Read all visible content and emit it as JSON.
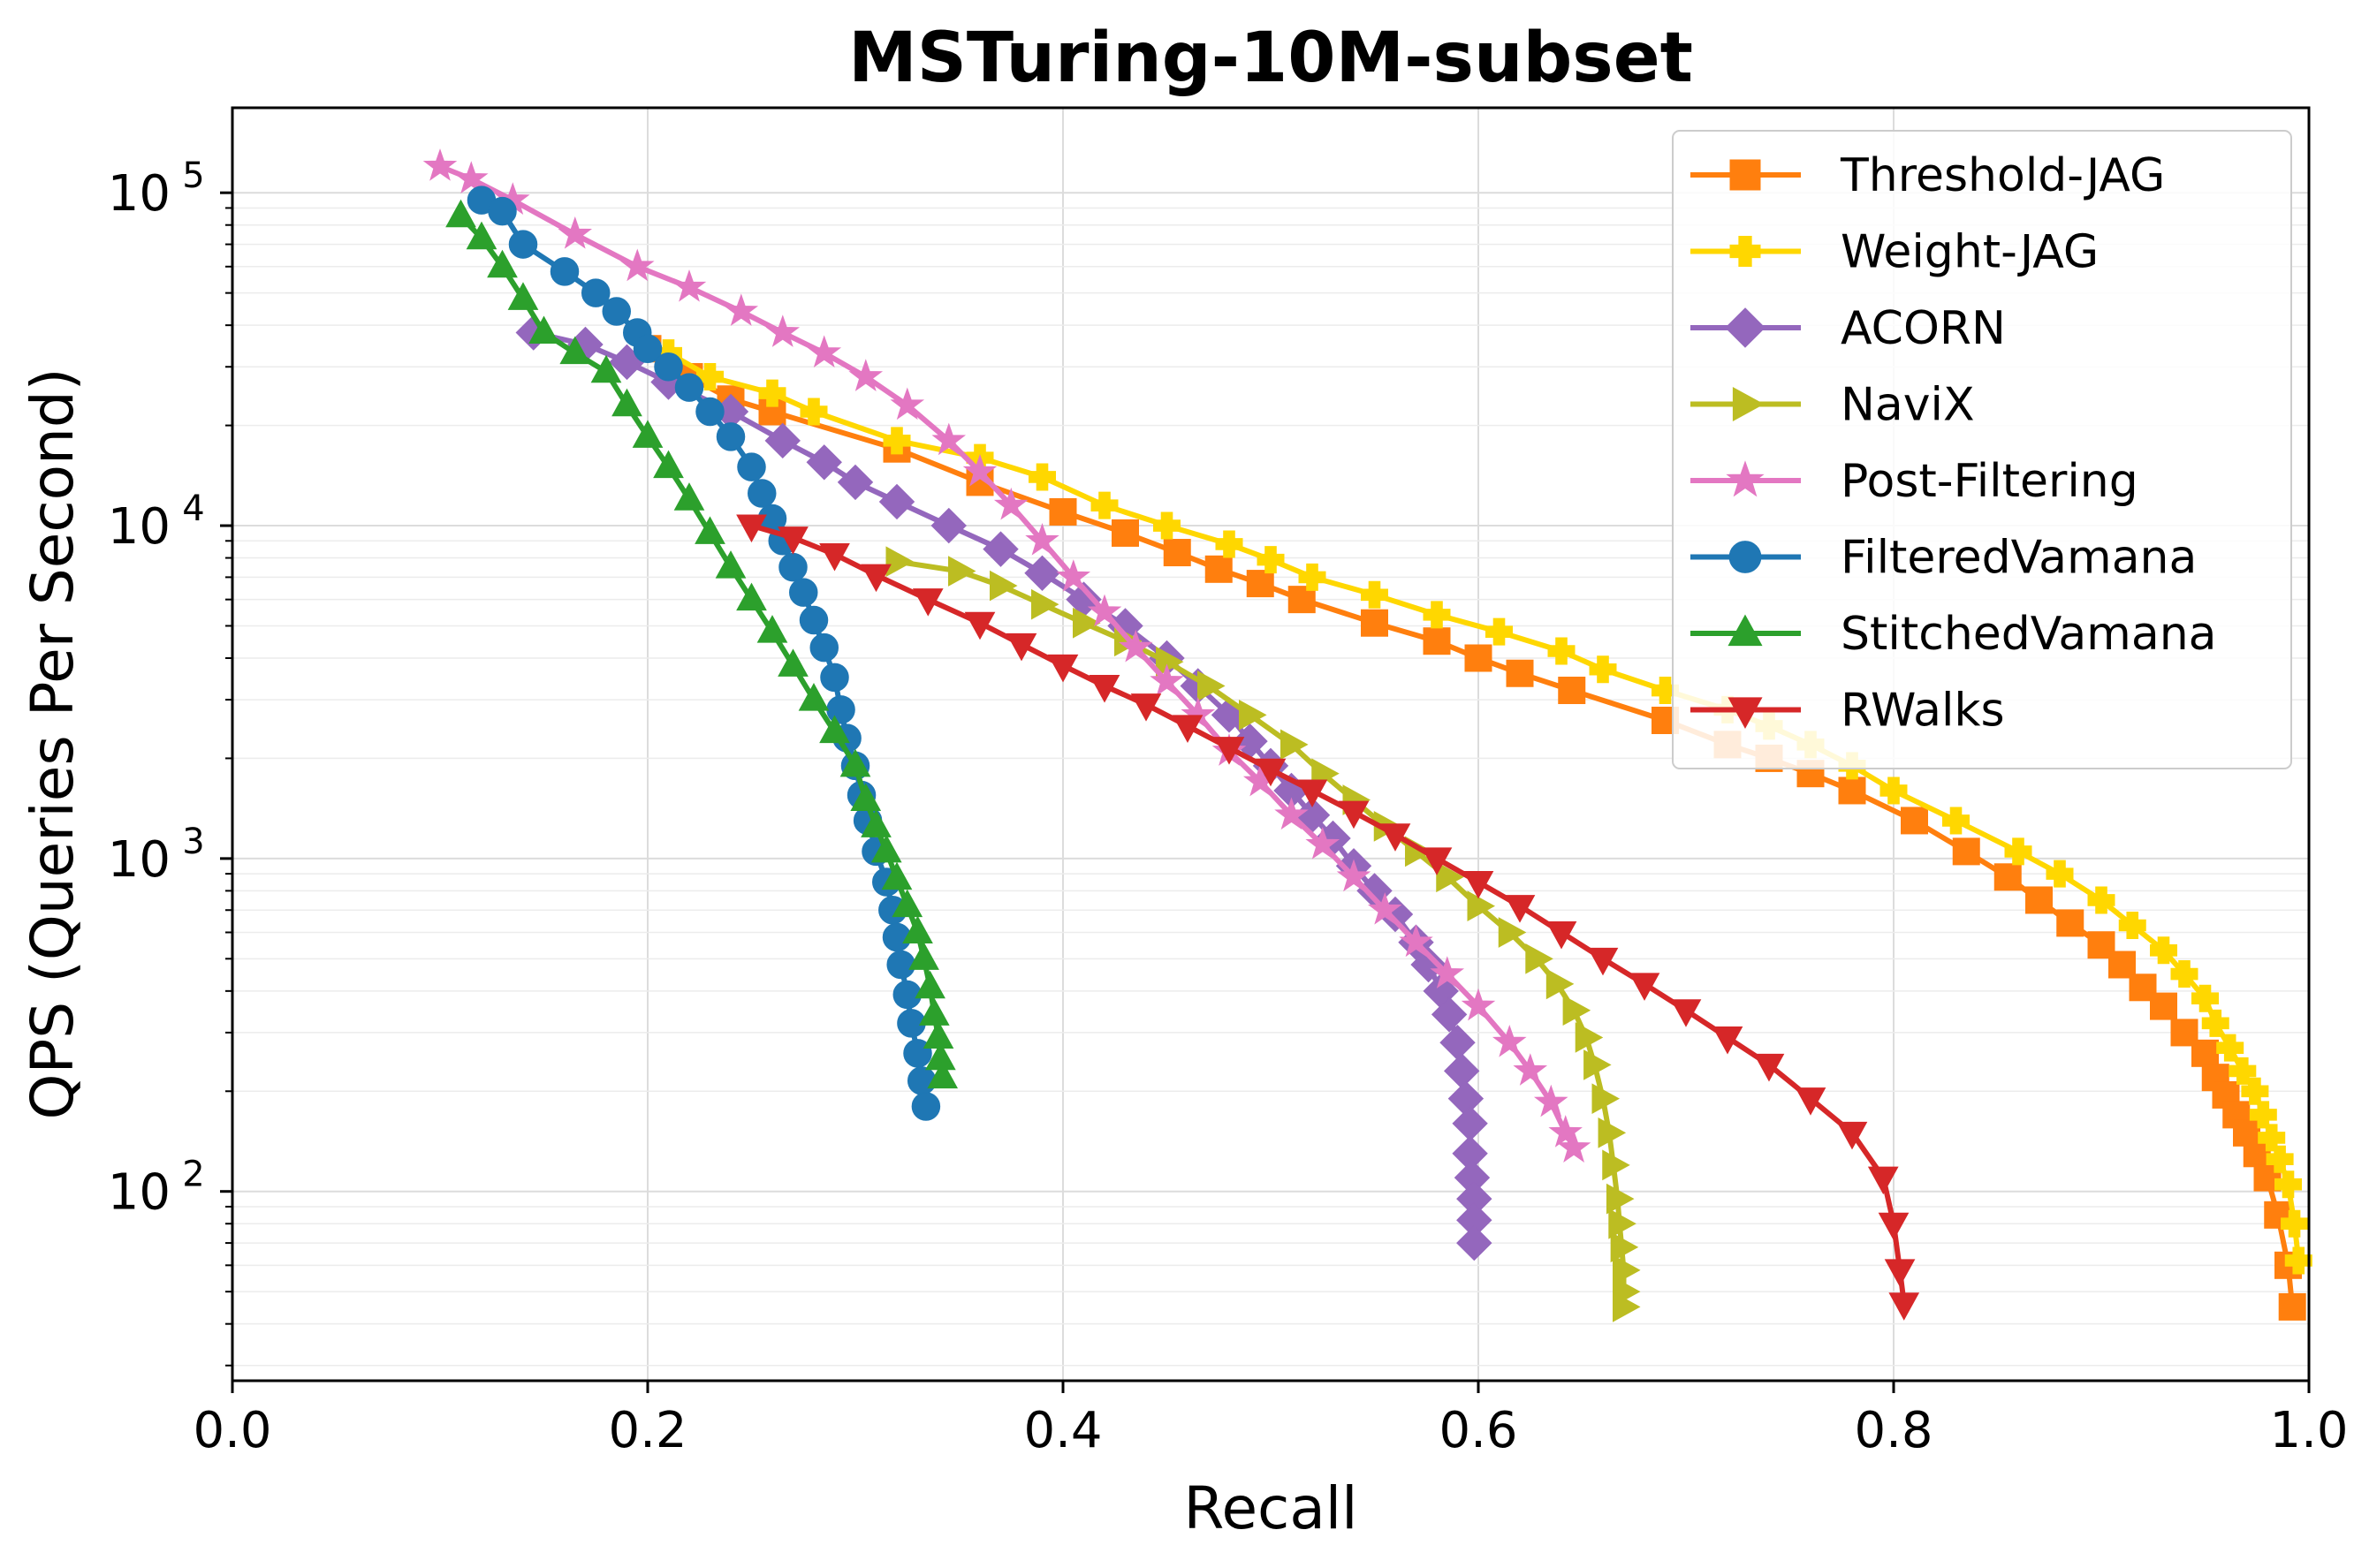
{
  "chart_data": {
    "type": "line",
    "title": "MSTuring-10M-subset",
    "xlabel": "Recall",
    "ylabel": "QPS (Queries Per Second)",
    "xlim": [
      0.0,
      1.0
    ],
    "ylim": [
      27,
      180000
    ],
    "yscale": "log",
    "grid": true,
    "legend_position": "top-right",
    "x_ticks": [
      {
        "value": 0.0,
        "label": "0.0"
      },
      {
        "value": 0.2,
        "label": "0.2"
      },
      {
        "value": 0.4,
        "label": "0.4"
      },
      {
        "value": 0.6,
        "label": "0.6"
      },
      {
        "value": 0.8,
        "label": "0.8"
      },
      {
        "value": 1.0,
        "label": "1.0"
      }
    ],
    "y_ticks": [
      {
        "value": 100,
        "base": "10",
        "exp": "2"
      },
      {
        "value": 1000,
        "base": "10",
        "exp": "3"
      },
      {
        "value": 10000,
        "base": "10",
        "exp": "4"
      },
      {
        "value": 100000,
        "base": "10",
        "exp": "5"
      }
    ],
    "series": [
      {
        "name": "Threshold-JAG",
        "color": "#ff7f0e",
        "marker": "square",
        "points": [
          [
            0.2,
            34000
          ],
          [
            0.22,
            28000
          ],
          [
            0.24,
            24000
          ],
          [
            0.26,
            22000
          ],
          [
            0.32,
            17000
          ],
          [
            0.36,
            13500
          ],
          [
            0.4,
            11000
          ],
          [
            0.43,
            9500
          ],
          [
            0.455,
            8300
          ],
          [
            0.475,
            7400
          ],
          [
            0.495,
            6700
          ],
          [
            0.515,
            6000
          ],
          [
            0.55,
            5100
          ],
          [
            0.58,
            4500
          ],
          [
            0.6,
            4000
          ],
          [
            0.62,
            3600
          ],
          [
            0.645,
            3200
          ],
          [
            0.69,
            2600
          ],
          [
            0.72,
            2200
          ],
          [
            0.74,
            2000
          ],
          [
            0.76,
            1800
          ],
          [
            0.78,
            1600
          ],
          [
            0.81,
            1300
          ],
          [
            0.835,
            1050
          ],
          [
            0.855,
            880
          ],
          [
            0.87,
            750
          ],
          [
            0.885,
            640
          ],
          [
            0.9,
            550
          ],
          [
            0.91,
            480
          ],
          [
            0.92,
            410
          ],
          [
            0.93,
            360
          ],
          [
            0.94,
            300
          ],
          [
            0.95,
            260
          ],
          [
            0.955,
            220
          ],
          [
            0.96,
            195
          ],
          [
            0.965,
            170
          ],
          [
            0.97,
            150
          ],
          [
            0.975,
            130
          ],
          [
            0.98,
            110
          ],
          [
            0.985,
            85
          ],
          [
            0.99,
            60
          ],
          [
            0.992,
            45
          ]
        ]
      },
      {
        "name": "Weight-JAG",
        "color": "#ffd700",
        "marker": "plus",
        "points": [
          [
            0.21,
            33000
          ],
          [
            0.23,
            28000
          ],
          [
            0.26,
            25000
          ],
          [
            0.28,
            22000
          ],
          [
            0.32,
            18000
          ],
          [
            0.36,
            16000
          ],
          [
            0.39,
            14000
          ],
          [
            0.42,
            11500
          ],
          [
            0.45,
            10000
          ],
          [
            0.48,
            8800
          ],
          [
            0.5,
            7900
          ],
          [
            0.52,
            7000
          ],
          [
            0.55,
            6200
          ],
          [
            0.58,
            5400
          ],
          [
            0.61,
            4800
          ],
          [
            0.64,
            4200
          ],
          [
            0.66,
            3700
          ],
          [
            0.69,
            3200
          ],
          [
            0.72,
            2800
          ],
          [
            0.74,
            2500
          ],
          [
            0.76,
            2200
          ],
          [
            0.78,
            1900
          ],
          [
            0.8,
            1600
          ],
          [
            0.83,
            1300
          ],
          [
            0.86,
            1050
          ],
          [
            0.88,
            900
          ],
          [
            0.9,
            750
          ],
          [
            0.915,
            630
          ],
          [
            0.93,
            530
          ],
          [
            0.94,
            450
          ],
          [
            0.95,
            380
          ],
          [
            0.955,
            320
          ],
          [
            0.962,
            270
          ],
          [
            0.968,
            230
          ],
          [
            0.974,
            200
          ],
          [
            0.978,
            170
          ],
          [
            0.982,
            145
          ],
          [
            0.986,
            125
          ],
          [
            0.99,
            105
          ],
          [
            0.993,
            80
          ],
          [
            0.995,
            62
          ]
        ]
      },
      {
        "name": "ACORN",
        "color": "#9467bd",
        "marker": "diamond",
        "points": [
          [
            0.145,
            38000
          ],
          [
            0.17,
            35000
          ],
          [
            0.19,
            31000
          ],
          [
            0.21,
            27000
          ],
          [
            0.24,
            22000
          ],
          [
            0.265,
            18000
          ],
          [
            0.285,
            15500
          ],
          [
            0.3,
            13500
          ],
          [
            0.32,
            11800
          ],
          [
            0.345,
            10000
          ],
          [
            0.37,
            8500
          ],
          [
            0.39,
            7200
          ],
          [
            0.41,
            6000
          ],
          [
            0.43,
            5000
          ],
          [
            0.45,
            4000
          ],
          [
            0.465,
            3300
          ],
          [
            0.48,
            2700
          ],
          [
            0.49,
            2250
          ],
          [
            0.5,
            1900
          ],
          [
            0.51,
            1600
          ],
          [
            0.52,
            1350
          ],
          [
            0.53,
            1150
          ],
          [
            0.54,
            950
          ],
          [
            0.55,
            800
          ],
          [
            0.56,
            680
          ],
          [
            0.57,
            560
          ],
          [
            0.576,
            480
          ],
          [
            0.582,
            400
          ],
          [
            0.586,
            340
          ],
          [
            0.59,
            280
          ],
          [
            0.592,
            230
          ],
          [
            0.594,
            190
          ],
          [
            0.596,
            160
          ],
          [
            0.596,
            130
          ],
          [
            0.597,
            110
          ],
          [
            0.598,
            95
          ],
          [
            0.598,
            82
          ],
          [
            0.598,
            70
          ]
        ]
      },
      {
        "name": "NaviX",
        "color": "#bcbd22",
        "marker": "triangle-right",
        "points": [
          [
            0.32,
            7800
          ],
          [
            0.35,
            7300
          ],
          [
            0.37,
            6600
          ],
          [
            0.39,
            5800
          ],
          [
            0.41,
            5100
          ],
          [
            0.43,
            4500
          ],
          [
            0.45,
            3900
          ],
          [
            0.47,
            3300
          ],
          [
            0.49,
            2700
          ],
          [
            0.51,
            2200
          ],
          [
            0.525,
            1800
          ],
          [
            0.54,
            1500
          ],
          [
            0.555,
            1250
          ],
          [
            0.57,
            1050
          ],
          [
            0.585,
            880
          ],
          [
            0.6,
            720
          ],
          [
            0.615,
            600
          ],
          [
            0.628,
            500
          ],
          [
            0.638,
            420
          ],
          [
            0.646,
            350
          ],
          [
            0.652,
            290
          ],
          [
            0.656,
            240
          ],
          [
            0.66,
            190
          ],
          [
            0.663,
            150
          ],
          [
            0.665,
            120
          ],
          [
            0.667,
            95
          ],
          [
            0.668,
            80
          ],
          [
            0.669,
            68
          ],
          [
            0.67,
            58
          ],
          [
            0.67,
            50
          ],
          [
            0.67,
            45
          ]
        ]
      },
      {
        "name": "Post-Filtering",
        "color": "#e377c2",
        "marker": "star",
        "points": [
          [
            0.1,
            120000
          ],
          [
            0.115,
            110000
          ],
          [
            0.135,
            95000
          ],
          [
            0.165,
            75000
          ],
          [
            0.195,
            60000
          ],
          [
            0.22,
            52000
          ],
          [
            0.245,
            44000
          ],
          [
            0.265,
            38000
          ],
          [
            0.285,
            33000
          ],
          [
            0.305,
            28000
          ],
          [
            0.325,
            23000
          ],
          [
            0.345,
            18000
          ],
          [
            0.36,
            14500
          ],
          [
            0.375,
            11500
          ],
          [
            0.39,
            9000
          ],
          [
            0.405,
            7000
          ],
          [
            0.42,
            5500
          ],
          [
            0.435,
            4300
          ],
          [
            0.45,
            3400
          ],
          [
            0.465,
            2700
          ],
          [
            0.48,
            2100
          ],
          [
            0.495,
            1700
          ],
          [
            0.51,
            1350
          ],
          [
            0.525,
            1100
          ],
          [
            0.54,
            880
          ],
          [
            0.555,
            700
          ],
          [
            0.57,
            560
          ],
          [
            0.585,
            450
          ],
          [
            0.6,
            360
          ],
          [
            0.615,
            280
          ],
          [
            0.625,
            230
          ],
          [
            0.635,
            185
          ],
          [
            0.642,
            150
          ],
          [
            0.646,
            135
          ]
        ]
      },
      {
        "name": "FilteredVamana",
        "color": "#1f77b4",
        "marker": "circle",
        "points": [
          [
            0.12,
            95000
          ],
          [
            0.13,
            88000
          ],
          [
            0.14,
            70000
          ],
          [
            0.16,
            58000
          ],
          [
            0.175,
            50000
          ],
          [
            0.185,
            44000
          ],
          [
            0.195,
            38000
          ],
          [
            0.2,
            34000
          ],
          [
            0.21,
            30000
          ],
          [
            0.22,
            26000
          ],
          [
            0.23,
            22000
          ],
          [
            0.24,
            18500
          ],
          [
            0.25,
            15000
          ],
          [
            0.255,
            12500
          ],
          [
            0.26,
            10500
          ],
          [
            0.265,
            9000
          ],
          [
            0.27,
            7500
          ],
          [
            0.275,
            6300
          ],
          [
            0.28,
            5200
          ],
          [
            0.285,
            4300
          ],
          [
            0.29,
            3500
          ],
          [
            0.293,
            2800
          ],
          [
            0.296,
            2300
          ],
          [
            0.3,
            1900
          ],
          [
            0.303,
            1550
          ],
          [
            0.306,
            1300
          ],
          [
            0.31,
            1050
          ],
          [
            0.315,
            850
          ],
          [
            0.318,
            700
          ],
          [
            0.32,
            580
          ],
          [
            0.322,
            480
          ],
          [
            0.325,
            390
          ],
          [
            0.327,
            320
          ],
          [
            0.33,
            260
          ],
          [
            0.332,
            215
          ],
          [
            0.334,
            180
          ]
        ]
      },
      {
        "name": "StitchedVamana",
        "color": "#2ca02c",
        "marker": "triangle-up",
        "points": [
          [
            0.11,
            85000
          ],
          [
            0.12,
            73000
          ],
          [
            0.13,
            60000
          ],
          [
            0.14,
            48000
          ],
          [
            0.15,
            38000
          ],
          [
            0.165,
            33000
          ],
          [
            0.18,
            29000
          ],
          [
            0.19,
            23000
          ],
          [
            0.2,
            18500
          ],
          [
            0.21,
            15000
          ],
          [
            0.22,
            12000
          ],
          [
            0.23,
            9500
          ],
          [
            0.24,
            7500
          ],
          [
            0.25,
            6000
          ],
          [
            0.26,
            4800
          ],
          [
            0.27,
            3800
          ],
          [
            0.28,
            3000
          ],
          [
            0.29,
            2400
          ],
          [
            0.3,
            1900
          ],
          [
            0.305,
            1500
          ],
          [
            0.31,
            1250
          ],
          [
            0.315,
            1050
          ],
          [
            0.32,
            870
          ],
          [
            0.325,
            720
          ],
          [
            0.33,
            600
          ],
          [
            0.333,
            500
          ],
          [
            0.336,
            410
          ],
          [
            0.338,
            340
          ],
          [
            0.34,
            290
          ],
          [
            0.341,
            250
          ],
          [
            0.342,
            220
          ]
        ]
      },
      {
        "name": "RWalks",
        "color": "#d62728",
        "marker": "triangle-down",
        "points": [
          [
            0.25,
            10000
          ],
          [
            0.27,
            9200
          ],
          [
            0.29,
            8200
          ],
          [
            0.31,
            7100
          ],
          [
            0.335,
            6000
          ],
          [
            0.36,
            5100
          ],
          [
            0.38,
            4400
          ],
          [
            0.4,
            3800
          ],
          [
            0.42,
            3300
          ],
          [
            0.44,
            2900
          ],
          [
            0.46,
            2500
          ],
          [
            0.48,
            2150
          ],
          [
            0.5,
            1850
          ],
          [
            0.52,
            1600
          ],
          [
            0.54,
            1380
          ],
          [
            0.56,
            1180
          ],
          [
            0.58,
            1000
          ],
          [
            0.6,
            850
          ],
          [
            0.62,
            720
          ],
          [
            0.64,
            600
          ],
          [
            0.66,
            500
          ],
          [
            0.68,
            420
          ],
          [
            0.7,
            350
          ],
          [
            0.72,
            290
          ],
          [
            0.74,
            240
          ],
          [
            0.76,
            190
          ],
          [
            0.78,
            150
          ],
          [
            0.795,
            110
          ],
          [
            0.8,
            80
          ],
          [
            0.803,
            58
          ],
          [
            0.805,
            46
          ]
        ]
      }
    ]
  }
}
